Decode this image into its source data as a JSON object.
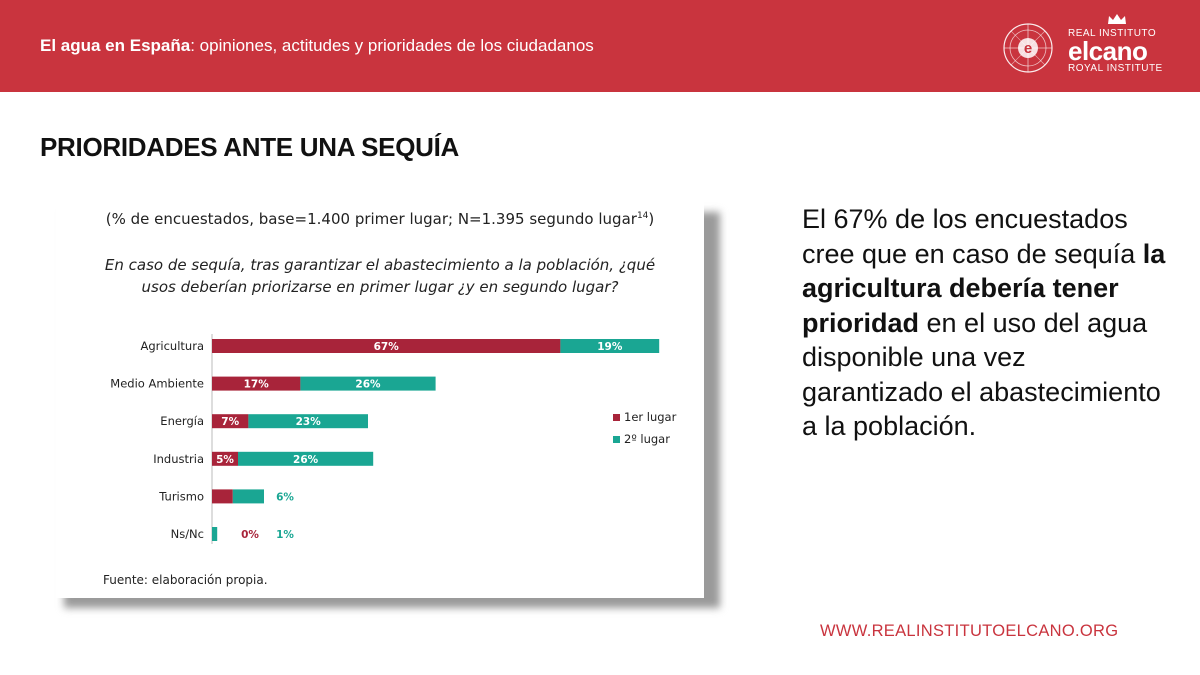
{
  "header": {
    "title_bold": "El agua en España",
    "title_rest": ": opiniones, actitudes y prioridades de los ciudadanos",
    "logo_line1": "REAL INSTITUTO",
    "logo_line2": "elcano",
    "logo_line3": "ROYAL INSTITUTE",
    "logo_icon": "elcano-compass-logo"
  },
  "page": {
    "title": "PRIORIDADES ANTE UNA SEQUÍA"
  },
  "chart_data": {
    "type": "bar",
    "orientation": "horizontal",
    "stacked": true,
    "subtitle": "(% de encuestados, base=1.400 primer lugar; N=1.395 segundo lugar",
    "subtitle_footnote": "14",
    "subtitle_close": ")",
    "question": "En caso de sequía, tras garantizar el abastecimiento a la población, ¿qué usos deberían priorizarse en primer lugar ¿y en segundo lugar?",
    "categories": [
      "Agricultura",
      "Medio Ambiente",
      "Energía",
      "Industria",
      "Turismo",
      "Ns/Nc"
    ],
    "series": [
      {
        "name": "1er lugar",
        "color": "#a8243a",
        "values": [
          67,
          17,
          7,
          5,
          4,
          0
        ]
      },
      {
        "name": "2º lugar",
        "color": "#1aa693",
        "values": [
          19,
          26,
          23,
          26,
          6,
          1
        ]
      }
    ],
    "value_suffix": "%",
    "legend_position": "right",
    "grid": false,
    "source": "Fuente: elaboración propia."
  },
  "commentary": {
    "part1": "El 67% de los encuestados cree que en caso de sequía ",
    "bold": "la agricultura debería tener prioridad",
    "part2": " en el uso del agua disponible una vez garantizado el abastecimiento a la población."
  },
  "footer": {
    "website": "WWW.REALINSTITUTOELCANO.ORG"
  }
}
